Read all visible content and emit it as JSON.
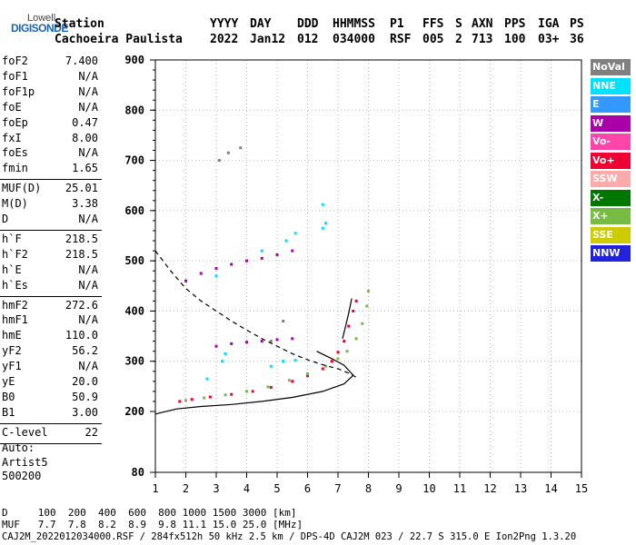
{
  "logo": {
    "top": "Lowell",
    "main": "DIGISONDE"
  },
  "header": {
    "line1": [
      {
        "key": "station",
        "text": "Station"
      },
      {
        "key": "yyyy",
        "text": "YYYY"
      },
      {
        "key": "day",
        "text": "DAY"
      },
      {
        "key": "ddd",
        "text": "DDD"
      },
      {
        "key": "hhmmss",
        "text": "HHMMSS"
      },
      {
        "key": "p1",
        "text": "P1"
      },
      {
        "key": "ffs",
        "text": "FFS"
      },
      {
        "key": "s",
        "text": "S"
      },
      {
        "key": "axn",
        "text": "AXN"
      },
      {
        "key": "pps",
        "text": "PPS"
      },
      {
        "key": "iga",
        "text": "IGA"
      },
      {
        "key": "ps",
        "text": "PS"
      }
    ],
    "line2": [
      {
        "key": "station",
        "text": "Cachoeira Paulista"
      },
      {
        "key": "yyyy",
        "text": "2022"
      },
      {
        "key": "day",
        "text": "Jan12"
      },
      {
        "key": "ddd",
        "text": "012"
      },
      {
        "key": "hhmmss",
        "text": "034000"
      },
      {
        "key": "p1",
        "text": "RSF"
      },
      {
        "key": "ffs",
        "text": "005"
      },
      {
        "key": "s",
        "text": "2"
      },
      {
        "key": "axn",
        "text": "713"
      },
      {
        "key": "pps",
        "text": "100"
      },
      {
        "key": "iga",
        "text": "03+"
      },
      {
        "key": "ps",
        "text": "36"
      }
    ]
  },
  "params": [
    {
      "label": "foF2",
      "value": "7.400"
    },
    {
      "label": "foF1",
      "value": "N/A"
    },
    {
      "label": "foF1p",
      "value": "N/A"
    },
    {
      "label": "foE",
      "value": "N/A"
    },
    {
      "label": "foEp",
      "value": "0.47"
    },
    {
      "label": "fxI",
      "value": "8.00"
    },
    {
      "label": "foEs",
      "value": "N/A"
    },
    {
      "label": "fmin",
      "value": "1.65"
    },
    {
      "sep": true
    },
    {
      "label": "MUF(D)",
      "value": "25.01"
    },
    {
      "label": "M(D)",
      "value": "3.38"
    },
    {
      "label": "D",
      "value": "N/A"
    },
    {
      "sep": true
    },
    {
      "label": "h`F",
      "value": "218.5"
    },
    {
      "label": "h`F2",
      "value": "218.5"
    },
    {
      "label": "h`E",
      "value": "N/A"
    },
    {
      "label": "h`Es",
      "value": "N/A"
    },
    {
      "sep": true
    },
    {
      "label": "hmF2",
      "value": "272.6"
    },
    {
      "label": "hmF1",
      "value": "N/A"
    },
    {
      "label": "hmE",
      "value": "110.0"
    },
    {
      "label": "yF2",
      "value": "56.2"
    },
    {
      "label": "yF1",
      "value": "N/A"
    },
    {
      "label": "yE",
      "value": "20.0"
    },
    {
      "label": "B0",
      "value": "50.9"
    },
    {
      "label": "B1",
      "value": "3.00"
    },
    {
      "sep": true
    },
    {
      "label": "C-level",
      "value": "22"
    },
    {
      "sep": true
    }
  ],
  "autoscale": {
    "line1": "Auto:",
    "line2": "Artist5",
    "line3": "500200"
  },
  "legend": [
    {
      "label": "NoVal",
      "color": "#808080",
      "text_color": "#ffffff"
    },
    {
      "label": "NNE",
      "color": "#00e0ff",
      "text_color": "#ffffff"
    },
    {
      "label": "E",
      "color": "#3399ff",
      "text_color": "#ffffff"
    },
    {
      "label": "W",
      "color": "#aa00aa",
      "text_color": "#ffffff"
    },
    {
      "label": "Vo-",
      "color": "#ff44aa",
      "text_color": "#ffffff"
    },
    {
      "label": "Vo+",
      "color": "#ee0033",
      "text_color": "#ffffff"
    },
    {
      "label": "SSW",
      "color": "#ffaaaa",
      "text_color": "#ffffff"
    },
    {
      "label": "X-",
      "color": "#007700",
      "text_color": "#ffffff"
    },
    {
      "label": "X+",
      "color": "#77bb44",
      "text_color": "#ffffff"
    },
    {
      "label": "SSE",
      "color": "#cccc00",
      "text_color": "#ffffff"
    },
    {
      "label": "NNW",
      "color": "#2222dd",
      "text_color": "#ffffff"
    }
  ],
  "muf_table": {
    "line1": "D     100  200  400  600  800 1000 1500 3000 [km]",
    "line2": "MUF   7.7  7.8  8.2  8.9  9.8 11.1 15.0 25.0 [MHz]"
  },
  "footer": "CAJ2M_2022012034000.RSF / 284fx512h 50 kHz 2.5 km / DPS-4D CAJ2M 023 / 22.7 S 315.0 E Ion2Png 1.3.20",
  "chart_data": {
    "type": "scatter",
    "xlim": [
      1,
      15
    ],
    "ylim": [
      80,
      900
    ],
    "x_ticks": [
      1,
      2,
      3,
      4,
      5,
      6,
      7,
      8,
      9,
      10,
      11,
      12,
      13,
      14,
      15
    ],
    "y_ticks": [
      80,
      200,
      300,
      400,
      500,
      600,
      700,
      800,
      900
    ],
    "series": [
      {
        "name": "Vo+",
        "color": "#ee0033",
        "points": [
          [
            1.8,
            220
          ],
          [
            2.2,
            224
          ],
          [
            2.8,
            229
          ],
          [
            3.5,
            234
          ],
          [
            4.2,
            240
          ],
          [
            4.8,
            248
          ],
          [
            5.5,
            260
          ],
          [
            6.0,
            271
          ],
          [
            6.5,
            285
          ],
          [
            6.8,
            300
          ],
          [
            7.0,
            318
          ],
          [
            7.2,
            340
          ],
          [
            7.35,
            370
          ],
          [
            7.5,
            400
          ],
          [
            7.6,
            420
          ]
        ]
      },
      {
        "name": "X+",
        "color": "#77bb44",
        "points": [
          [
            2.0,
            222
          ],
          [
            2.6,
            227
          ],
          [
            3.3,
            233
          ],
          [
            4.0,
            240
          ],
          [
            4.7,
            249
          ],
          [
            5.4,
            262
          ],
          [
            6.0,
            275
          ],
          [
            6.6,
            290
          ],
          [
            7.0,
            305
          ],
          [
            7.3,
            320
          ],
          [
            7.6,
            345
          ],
          [
            7.8,
            375
          ],
          [
            7.95,
            410
          ],
          [
            8.0,
            440
          ]
        ]
      },
      {
        "name": "W",
        "color": "#aa00aa",
        "points": [
          [
            2.0,
            460
          ],
          [
            2.5,
            475
          ],
          [
            3.0,
            485
          ],
          [
            3.5,
            493
          ],
          [
            4.0,
            500
          ],
          [
            4.5,
            505
          ],
          [
            5.0,
            512
          ],
          [
            5.5,
            520
          ],
          [
            3.0,
            330
          ],
          [
            3.5,
            335
          ],
          [
            4.0,
            338
          ],
          [
            4.5,
            340
          ],
          [
            5.0,
            343
          ],
          [
            5.5,
            345
          ]
        ]
      },
      {
        "name": "NNE",
        "color": "#00e0ff",
        "points": [
          [
            3.0,
            470
          ],
          [
            4.5,
            520
          ],
          [
            5.3,
            540
          ],
          [
            5.6,
            555
          ],
          [
            6.5,
            565
          ],
          [
            6.6,
            575
          ],
          [
            3.2,
            300
          ],
          [
            3.3,
            315
          ],
          [
            4.8,
            290
          ],
          [
            5.2,
            300
          ],
          [
            5.6,
            302
          ],
          [
            2.7,
            265
          ],
          [
            6.5,
            612
          ]
        ]
      },
      {
        "name": "NoVal",
        "color": "#808080",
        "points": [
          [
            3.1,
            700
          ],
          [
            3.4,
            715
          ],
          [
            3.8,
            725
          ],
          [
            4.8,
            340
          ],
          [
            5.2,
            380
          ]
        ]
      }
    ],
    "lines": [
      {
        "name": "profile",
        "style": "solid",
        "points": [
          [
            1.0,
            195
          ],
          [
            1.7,
            205
          ],
          [
            2.5,
            210
          ],
          [
            3.5,
            214
          ],
          [
            4.5,
            220
          ],
          [
            5.5,
            228
          ],
          [
            6.5,
            240
          ],
          [
            7.2,
            255
          ],
          [
            7.5,
            272
          ],
          [
            7.2,
            292
          ],
          [
            6.8,
            305
          ],
          [
            6.3,
            320
          ]
        ]
      },
      {
        "name": "trace-fit-black",
        "style": "solid",
        "points": [
          [
            7.15,
            345
          ],
          [
            7.25,
            370
          ],
          [
            7.35,
            395
          ],
          [
            7.45,
            425
          ]
        ]
      },
      {
        "name": "model",
        "style": "dashed",
        "points": [
          [
            1.0,
            520
          ],
          [
            1.5,
            480
          ],
          [
            2.0,
            445
          ],
          [
            2.5,
            420
          ],
          [
            3.0,
            400
          ],
          [
            3.5,
            380
          ],
          [
            4.0,
            362
          ],
          [
            4.5,
            345
          ],
          [
            5.0,
            330
          ],
          [
            5.5,
            315
          ],
          [
            6.0,
            303
          ],
          [
            6.5,
            293
          ],
          [
            7.0,
            285
          ],
          [
            7.4,
            275
          ],
          [
            7.6,
            268
          ]
        ]
      }
    ]
  }
}
